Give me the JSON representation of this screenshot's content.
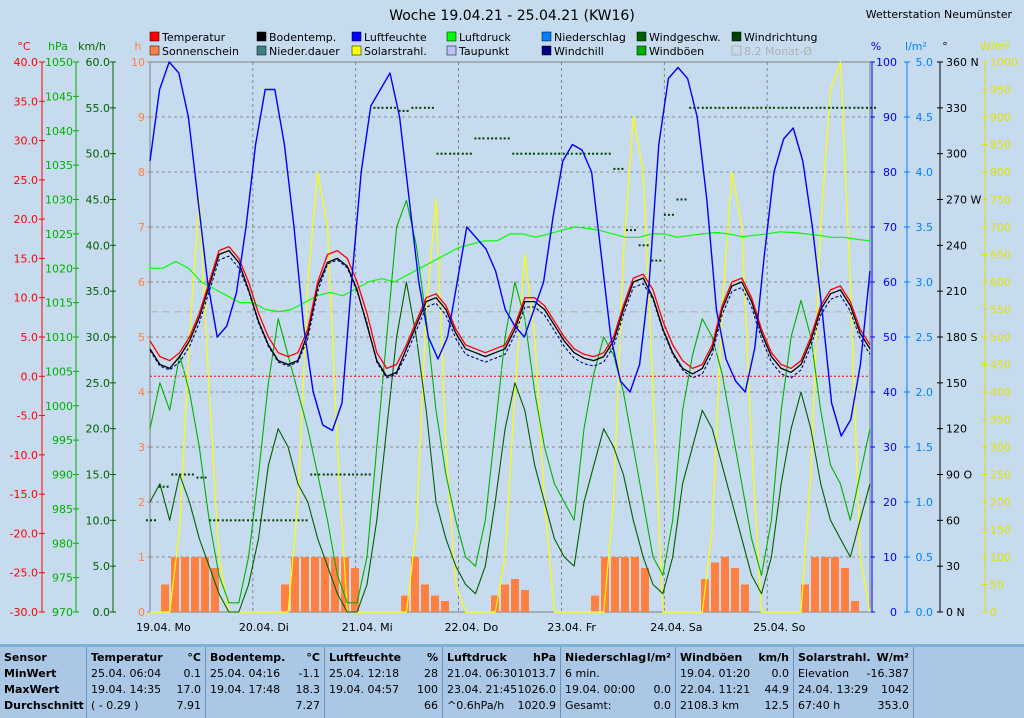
{
  "header": {
    "title": "Woche 19.04.21 - 25.04.21 (KW16)",
    "station": "Wetterstation Neumünster"
  },
  "legend": [
    {
      "label": "Temperatur",
      "color": "#ff0000"
    },
    {
      "label": "Sonnenschein",
      "color": "#ff8040"
    },
    {
      "label": "Bodentemp.",
      "color": "#000000"
    },
    {
      "label": "Nieder.dauer",
      "color": "#408080"
    },
    {
      "label": "Luftfeuchte",
      "color": "#0000ff"
    },
    {
      "label": "Solarstrahl.",
      "color": "#ffff00"
    },
    {
      "label": "Luftdruck",
      "color": "#00ff00"
    },
    {
      "label": "Taupunkt",
      "color": "#c0c0ff"
    },
    {
      "label": "Niederschlag",
      "color": "#0080ff"
    },
    {
      "label": "Windchill",
      "color": "#000080"
    },
    {
      "label": "Windgeschw.",
      "color": "#006000"
    },
    {
      "label": "Windböen",
      "color": "#00b000"
    },
    {
      "label": "Windrichtung",
      "color": "#004000"
    },
    {
      "label": "8.2 Monat-Ø",
      "color": "#b0b0b0"
    }
  ],
  "chart_data": {
    "type": "line",
    "title": "Woche 19.04.21 - 25.04.21 (KW16)",
    "x_days": [
      "19.04.  Mo",
      "20.04.  Di",
      "21.04.  Mi",
      "22.04.  Do",
      "23.04.  Fr",
      "24.04.  Sa",
      "25.04.  So"
    ],
    "axes": {
      "temperature": {
        "unit": "°C",
        "ticks": [
          "40.0",
          "35.0",
          "30.0",
          "25.0",
          "20.0",
          "15.0",
          "10.0",
          "5.0",
          "0.0",
          "-5.0",
          "-10.0",
          "-15.0",
          "-20.0",
          "-25.0",
          "-30.0"
        ],
        "color": "#ff0000"
      },
      "pressure": {
        "unit": "hPa",
        "ticks": [
          "1050",
          "1045",
          "1040",
          "1035",
          "1030",
          "1025",
          "1020",
          "1015",
          "1010",
          "1005",
          "1000",
          "995",
          "990",
          "985",
          "980",
          "975",
          "970"
        ],
        "color": "#00b000"
      },
      "wind_speed": {
        "unit": "km/h",
        "ticks": [
          "60.0",
          "55.0",
          "50.0",
          "45.0",
          "40.0",
          "35.0",
          "30.0",
          "25.0",
          "20.0",
          "15.0",
          "10.0",
          "5.0",
          "0.0"
        ],
        "color": "#006000"
      },
      "sunshine": {
        "unit": "h",
        "ticks": [
          "10",
          "9",
          "8",
          "7",
          "6",
          "5",
          "4",
          "3",
          "2",
          "1",
          "0"
        ],
        "color": "#ff8040"
      },
      "humidity": {
        "unit": "%",
        "ticks": [
          "100",
          "90",
          "80",
          "70",
          "60",
          "50",
          "40",
          "30",
          "20",
          "10",
          "0"
        ],
        "color": "#0000ff"
      },
      "precipitation": {
        "unit": "l/m²",
        "ticks": [
          "5.0",
          "4.5",
          "4.0",
          "3.5",
          "3.0",
          "2.5",
          "2.0",
          "1.5",
          "1.0",
          "0.5",
          "0.0"
        ],
        "color": "#0080ff"
      },
      "wind_direction": {
        "unit": "°",
        "ticks": [
          "360 N",
          "330",
          "300",
          "270 W",
          "240",
          "210",
          "180 S",
          "150",
          "120",
          "90  O",
          "60",
          "30",
          "0   N"
        ],
        "color": "#000000"
      },
      "solar": {
        "unit": "W/m²",
        "ticks": [
          "1000",
          "950",
          "900",
          "850",
          "800",
          "750",
          "700",
          "650",
          "600",
          "550",
          "500",
          "450",
          "400",
          "350",
          "300",
          "250",
          "200",
          "150",
          "100",
          "50",
          "0"
        ],
        "color": "#e0e000"
      }
    },
    "series": {
      "temperature_c": [
        4.5,
        2.5,
        2,
        3,
        5,
        8,
        12,
        16,
        16.5,
        15,
        12,
        8,
        5,
        3,
        2.5,
        3,
        6,
        12,
        15.5,
        16,
        15,
        12,
        8,
        3,
        1,
        1.5,
        4,
        7,
        10,
        10.5,
        9,
        6,
        4,
        3.5,
        3,
        3.5,
        4,
        6.5,
        10,
        10,
        9,
        7,
        5,
        3.5,
        2.8,
        2.5,
        3,
        5,
        9,
        12.5,
        13,
        11,
        7,
        4,
        2,
        1,
        1.5,
        4,
        9,
        12,
        12.5,
        10,
        6,
        3,
        1.5,
        1,
        2,
        5,
        9,
        11,
        11.5,
        9.5,
        6,
        4
      ],
      "soil_temp_c": [
        3.5,
        1.5,
        1,
        2.5,
        4.5,
        7.5,
        11.5,
        15.5,
        16,
        14.5,
        11,
        7,
        4,
        2,
        1.5,
        2,
        5.5,
        11.5,
        14.5,
        15,
        14,
        11,
        6.5,
        2,
        0,
        0.5,
        3.5,
        6.5,
        9.5,
        10,
        8.5,
        5.5,
        3.5,
        3,
        2.5,
        3,
        3.5,
        6,
        9.5,
        9.5,
        8.5,
        6.5,
        4.5,
        3,
        2.3,
        2,
        2.5,
        4.5,
        8.5,
        12,
        12.5,
        10,
        6,
        3,
        1,
        0.3,
        1,
        3.5,
        8.5,
        11.5,
        12,
        9.5,
        5.5,
        2.5,
        1,
        0.5,
        1.5,
        4.5,
        8.5,
        10.5,
        11,
        9,
        5.5,
        3.5
      ],
      "humidity_pct": [
        82,
        95,
        100,
        98,
        90,
        75,
        60,
        50,
        52,
        58,
        70,
        85,
        95,
        95,
        85,
        70,
        52,
        40,
        34,
        33,
        38,
        60,
        80,
        92,
        95,
        98,
        90,
        75,
        60,
        50,
        46,
        50,
        60,
        70,
        68,
        66,
        62,
        55,
        52,
        50,
        55,
        60,
        72,
        82,
        85,
        84,
        80,
        65,
        50,
        42,
        40,
        45,
        60,
        85,
        97,
        99,
        97,
        90,
        75,
        55,
        46,
        42,
        40,
        48,
        65,
        80,
        86,
        88,
        82,
        70,
        55,
        38,
        32,
        35,
        45,
        62
      ],
      "pressure_hpa": [
        1020,
        1020,
        1021,
        1020,
        1018,
        1017,
        1016,
        1015,
        1015,
        1014,
        1013.7,
        1014,
        1015,
        1016,
        1016.5,
        1016,
        1017,
        1018,
        1018.5,
        1018,
        1019,
        1020,
        1021,
        1022,
        1023,
        1023.5,
        1024,
        1024,
        1025,
        1025,
        1024.5,
        1025,
        1025.5,
        1026,
        1025.8,
        1025.5,
        1025,
        1024.5,
        1024.5,
        1025,
        1025,
        1024.5,
        1024.8,
        1025,
        1025.2,
        1025,
        1024.6,
        1024.8,
        1025,
        1025.3,
        1025.2,
        1025,
        1024.8,
        1024.5,
        1024.5,
        1024.2,
        1024
      ],
      "solar_wm2": [
        0,
        0,
        0,
        150,
        500,
        750,
        400,
        100,
        0,
        0,
        0,
        0,
        0,
        0,
        0,
        200,
        600,
        800,
        700,
        300,
        0,
        0,
        0,
        0,
        0,
        0,
        0,
        150,
        550,
        750,
        300,
        50,
        0,
        0,
        0,
        0,
        100,
        400,
        650,
        500,
        200,
        0,
        0,
        0,
        0,
        0,
        0,
        200,
        650,
        900,
        800,
        400,
        0,
        0,
        0,
        0,
        0,
        150,
        550,
        800,
        700,
        300,
        0,
        0,
        0,
        0,
        0,
        250,
        700,
        950,
        1000,
        600,
        100,
        0
      ],
      "wind_speed_kmh": [
        12,
        14,
        10,
        15,
        12,
        8,
        5,
        2,
        0,
        0,
        3,
        8,
        16,
        20,
        18,
        14,
        12,
        8,
        5,
        2,
        0,
        0,
        3,
        10,
        20,
        30,
        36,
        30,
        22,
        12,
        8,
        5,
        3,
        2,
        5,
        12,
        20,
        25,
        22,
        16,
        12,
        8,
        6,
        5,
        12,
        16,
        20,
        18,
        15,
        10,
        6,
        3,
        2,
        6,
        14,
        18,
        22,
        20,
        16,
        12,
        8,
        4,
        2,
        6,
        14,
        20,
        24,
        20,
        14,
        10,
        8,
        6,
        10,
        14
      ],
      "gust_kmh": [
        20,
        25,
        22,
        28,
        24,
        18,
        10,
        4,
        1,
        1,
        6,
        15,
        25,
        32,
        28,
        24,
        20,
        15,
        10,
        4,
        1,
        1,
        6,
        18,
        30,
        42,
        44.9,
        40,
        32,
        22,
        15,
        10,
        6,
        5,
        10,
        20,
        30,
        36,
        32,
        24,
        18,
        14,
        12,
        10,
        20,
        26,
        30,
        28,
        24,
        18,
        12,
        6,
        4,
        10,
        22,
        28,
        32,
        30,
        26,
        20,
        14,
        8,
        4,
        10,
        22,
        30,
        34,
        30,
        22,
        16,
        14,
        10,
        15,
        20
      ],
      "wind_dir_deg": [
        60,
        82,
        90,
        90,
        88,
        60,
        60,
        60,
        60,
        60,
        60,
        60,
        60,
        90,
        90,
        90,
        90,
        90,
        330,
        330,
        328,
        330,
        330,
        300,
        300,
        300,
        310,
        310,
        310,
        300,
        300,
        300,
        300,
        300,
        300,
        300,
        300,
        290,
        250,
        240,
        230,
        260,
        270,
        330,
        330,
        330,
        330,
        330,
        330,
        330,
        330,
        330,
        330,
        330,
        330,
        330,
        330,
        330
      ]
    },
    "sunshine_hours": [
      0,
      0.5,
      1,
      1,
      1,
      1,
      0.8,
      0,
      0,
      0,
      0,
      0,
      0,
      0.5,
      1,
      1,
      1,
      1,
      1,
      1,
      0.8,
      0,
      0,
      0,
      0,
      0.3,
      1,
      0.5,
      0.3,
      0.2,
      0,
      0,
      0,
      0,
      0.3,
      0.5,
      0.6,
      0.4,
      0,
      0,
      0,
      0,
      0,
      0,
      0.3,
      1,
      1,
      1,
      1,
      0.8,
      0,
      0,
      0,
      0,
      0,
      0.6,
      0.9,
      1,
      0.8,
      0.5,
      0,
      0,
      0,
      0,
      0,
      0.5,
      1,
      1,
      1,
      0.8,
      0.2,
      0
    ],
    "reference_lines": {
      "zero_temp_c": 0,
      "monthly_mean_c": 8.2
    }
  },
  "stats": {
    "row_labels": {
      "sensor": "Sensor",
      "min": "MinWert",
      "max": "MaxWert",
      "avg": "Durchschnitt"
    },
    "columns": [
      {
        "name": "Temperatur",
        "unit": "°C",
        "rows": [
          [
            "25.04.  06:04",
            "0.1"
          ],
          [
            "19.04.  14:35",
            "17.0"
          ],
          [
            "( - 0.29 )",
            "7.91"
          ]
        ]
      },
      {
        "name": "Bodentemp.",
        "unit": "°C",
        "rows": [
          [
            "25.04.  04:16",
            "-1.1"
          ],
          [
            "19.04.  17:48",
            "18.3"
          ],
          [
            "",
            "7.27"
          ]
        ]
      },
      {
        "name": "Luftfeuchte",
        "unit": "%",
        "rows": [
          [
            "25.04.  12:18",
            "28"
          ],
          [
            "19.04.  04:57",
            "100"
          ],
          [
            "",
            "66"
          ]
        ]
      },
      {
        "name": "Luftdruck",
        "unit": "hPa",
        "rows": [
          [
            "21.04.  06:30",
            "1013.7"
          ],
          [
            "23.04.  21:45",
            "1026.0"
          ],
          [
            "^0.6hPa/h",
            "1020.9"
          ]
        ]
      },
      {
        "name": "Niederschlag",
        "unit": "l/m²",
        "rows": [
          [
            "6 min.",
            ""
          ],
          [
            "19.04.  00:00",
            "0.0"
          ],
          [
            "Gesamt:",
            "0.0"
          ]
        ]
      },
      {
        "name": "Windböen",
        "unit": "km/h",
        "rows": [
          [
            "19.04.  01:20",
            "0.0"
          ],
          [
            "22.04.  11:21",
            "44.9"
          ],
          [
            "2108.3 km",
            "12.5"
          ]
        ]
      },
      {
        "name": "Solarstrahl.",
        "unit": "W/m²",
        "rows": [
          [
            "Elevation",
            "-16.387"
          ],
          [
            "24.04.  13:29",
            "1042"
          ],
          [
            "67:40 h",
            "353.0"
          ]
        ]
      }
    ]
  }
}
